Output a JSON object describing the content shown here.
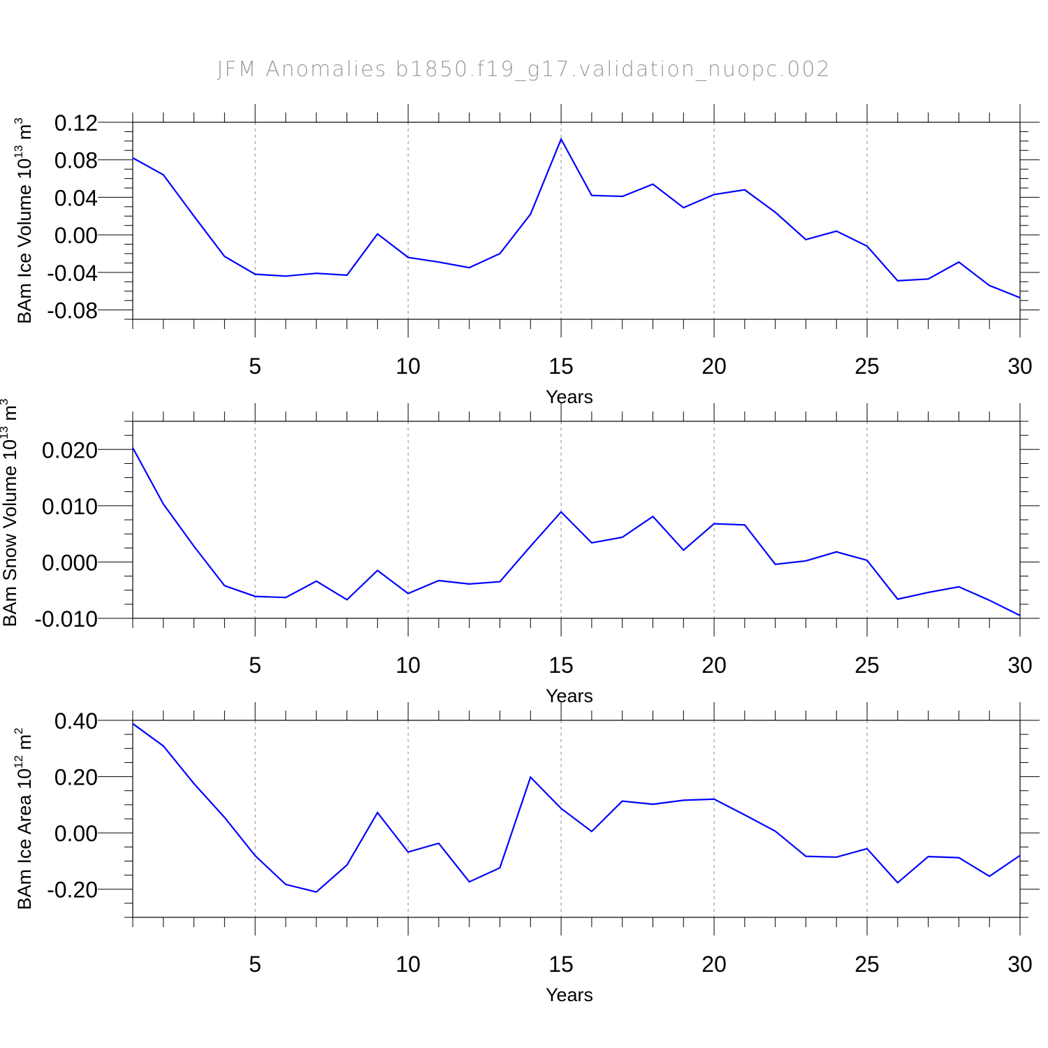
{
  "title": "JFM  Anomalies  b1850.f19_g17.validation_nuopc.002",
  "colors": {
    "line": "#0000ff",
    "axis": "#000000",
    "grid": "#888888"
  },
  "chart_data": [
    {
      "type": "line",
      "title": "",
      "xlabel": "Years",
      "ylabel": {
        "text": "BAm Ice Volume 10",
        "sup": "13",
        "unit": " m",
        "unit_sup": "3"
      },
      "xlim": [
        1,
        30
      ],
      "ylim": [
        -0.09,
        0.12
      ],
      "xticks": [
        "5",
        "10",
        "15",
        "20",
        "25",
        "30"
      ],
      "yticks": [
        "0.12",
        "0.08",
        "0.04",
        "0.00",
        "-0.04",
        "-0.08"
      ],
      "grid": "dashed vertical at major x ticks",
      "x": [
        1,
        2,
        3,
        4,
        5,
        6,
        7,
        8,
        9,
        10,
        11,
        12,
        13,
        14,
        15,
        16,
        17,
        18,
        19,
        20,
        21,
        22,
        23,
        24,
        25,
        26,
        27,
        28,
        29,
        30
      ],
      "series": [
        {
          "values": [
            0.082,
            0.064,
            0.02,
            -0.023,
            -0.042,
            -0.044,
            -0.041,
            -0.043,
            0.001,
            -0.024,
            -0.029,
            -0.035,
            -0.02,
            0.022,
            0.102,
            0.042,
            0.041,
            0.054,
            0.029,
            0.043,
            0.048,
            0.024,
            -0.005,
            0.004,
            -0.012,
            -0.049,
            -0.047,
            -0.029,
            -0.054,
            -0.067
          ]
        }
      ]
    },
    {
      "type": "line",
      "title": "",
      "xlabel": "Years",
      "ylabel": {
        "text": "BAm Snow Volume 10",
        "sup": "13",
        "unit": " m",
        "unit_sup": "3"
      },
      "xlim": [
        1,
        30
      ],
      "ylim": [
        -0.01,
        0.025
      ],
      "xticks": [
        "5",
        "10",
        "15",
        "20",
        "25",
        "30"
      ],
      "yticks": [
        "0.020",
        "0.010",
        "0.000",
        "-0.010"
      ],
      "grid": "dashed vertical at major x ticks",
      "x": [
        1,
        2,
        3,
        4,
        5,
        6,
        7,
        8,
        9,
        10,
        11,
        12,
        13,
        14,
        15,
        16,
        17,
        18,
        19,
        20,
        21,
        22,
        23,
        24,
        25,
        26,
        27,
        28,
        29,
        30
      ],
      "series": [
        {
          "values": [
            0.0203,
            0.0103,
            0.0028,
            -0.0042,
            -0.0061,
            -0.0063,
            -0.0034,
            -0.0067,
            -0.0015,
            -0.0056,
            -0.0033,
            -0.0039,
            -0.0035,
            0.0028,
            0.0089,
            0.0034,
            0.0044,
            0.0081,
            0.0021,
            0.0068,
            0.0066,
            -0.0004,
            0.0002,
            0.0018,
            0.0003,
            -0.0066,
            -0.0054,
            -0.0044,
            -0.0068,
            -0.0095
          ]
        }
      ]
    },
    {
      "type": "line",
      "title": "",
      "xlabel": "Years",
      "ylabel": {
        "text": "BAm Ice Area 10",
        "sup": "12",
        "unit": " m",
        "unit_sup": "2"
      },
      "xlim": [
        1,
        30
      ],
      "ylim": [
        -0.3,
        0.4
      ],
      "xticks": [
        "5",
        "10",
        "15",
        "20",
        "25",
        "30"
      ],
      "yticks": [
        "0.40",
        "0.20",
        "0.00",
        "-0.20"
      ],
      "grid": "dashed vertical at major x ticks",
      "x": [
        1,
        2,
        3,
        4,
        5,
        6,
        7,
        8,
        9,
        10,
        11,
        12,
        13,
        14,
        15,
        16,
        17,
        18,
        19,
        20,
        21,
        22,
        23,
        24,
        25,
        26,
        27,
        28,
        29,
        30
      ],
      "series": [
        {
          "values": [
            0.388,
            0.309,
            0.175,
            0.055,
            -0.081,
            -0.183,
            -0.21,
            -0.114,
            0.072,
            -0.068,
            -0.037,
            -0.174,
            -0.124,
            0.198,
            0.087,
            0.005,
            0.113,
            0.102,
            0.116,
            0.12,
            0.064,
            0.006,
            -0.083,
            -0.086,
            -0.056,
            -0.177,
            -0.084,
            -0.088,
            -0.154,
            -0.08
          ]
        }
      ]
    }
  ]
}
